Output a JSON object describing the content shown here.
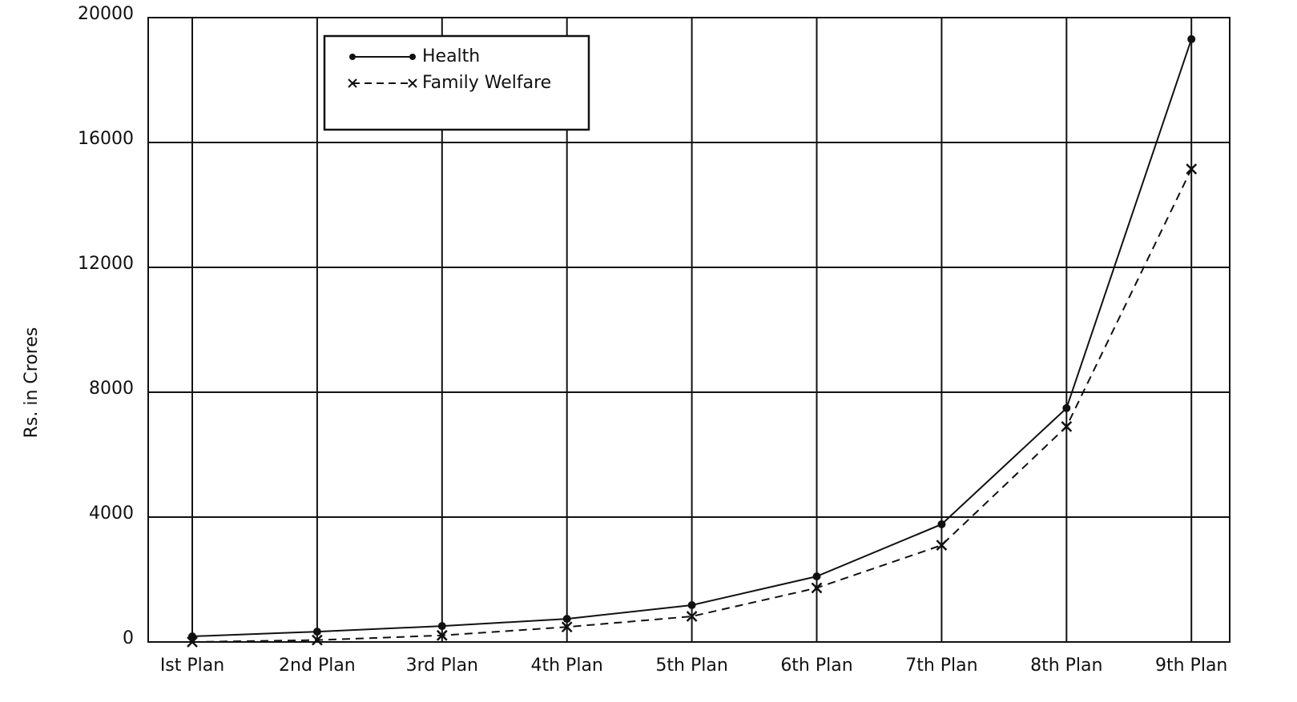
{
  "chart_data": {
    "type": "line",
    "ylabel": "Rs. in Crores",
    "categories": [
      "Ist Plan",
      "2nd Plan",
      "3rd Plan",
      "4th Plan",
      "5th Plan",
      "6th Plan",
      "7th Plan",
      "8th Plan",
      "9th Plan"
    ],
    "series": [
      {
        "name": "Health",
        "color": "#111111",
        "values": [
          180,
          330,
          510,
          740,
          1180,
          2100,
          3770,
          7490,
          19310
        ]
      },
      {
        "name": "Family Welfare",
        "color": "#111111",
        "values": [
          1,
          60,
          210,
          480,
          820,
          1730,
          3100,
          6900,
          15150
        ]
      }
    ],
    "ylim": [
      0,
      20000
    ],
    "yticks": [
      0,
      4000,
      8000,
      12000,
      16000,
      20000
    ],
    "grid": true,
    "legend": "upper left"
  }
}
